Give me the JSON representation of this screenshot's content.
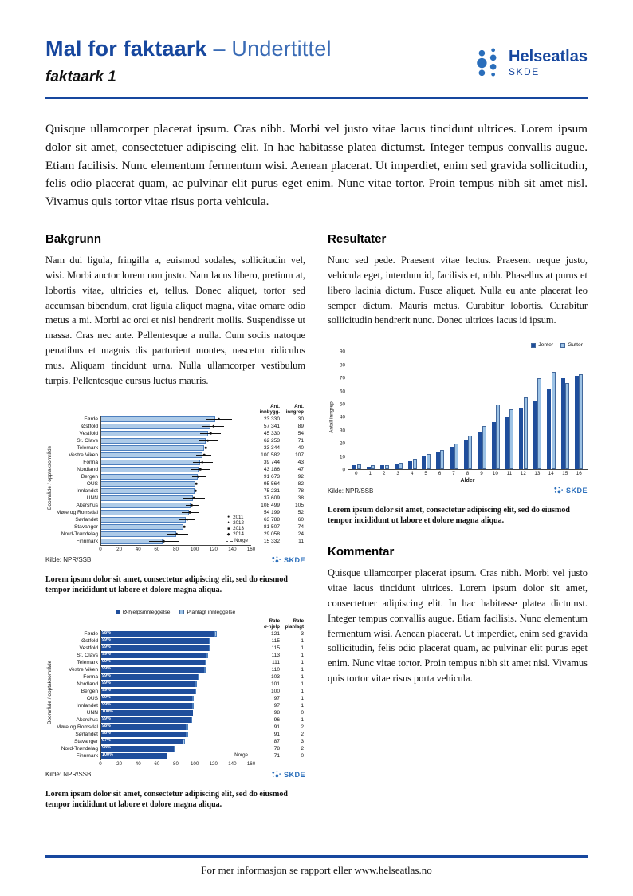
{
  "brand": {
    "primary": "#17479e",
    "bar_light": "#aecbe8",
    "bar_dark": "#1f4e9c",
    "dot_blue": "#2a6ebb",
    "skde_label": "SKDE"
  },
  "header": {
    "title": "Mal for faktaark",
    "title_suffix": "– Undertittel",
    "subtitle": "faktaark 1",
    "logo_name": "Helseatlas",
    "logo_org": "SKDE"
  },
  "intro": "Quisque ullamcorper placerat ipsum. Cras nibh. Morbi vel justo vitae lacus tincidunt ultrices. Lorem ipsum dolor sit amet, consectetuer adipiscing elit. In hac habitasse platea dictumst. Integer tempus convallis augue. Etiam facilisis. Nunc elementum fermentum wisi. Aenean placerat. Ut imperdiet, enim sed gravida sollicitudin, felis odio placerat quam, ac pulvinar elit purus eget enim. Nunc vitae tortor. Proin tempus nibh sit amet nisl. Vivamus quis tortor vitae risus porta vehicula.",
  "sections": {
    "bakgrunn": {
      "heading": "Bakgrunn",
      "body": "Nam dui ligula, fringilla a, euismod sodales, sollicitudin vel, wisi. Morbi auctor lorem non justo. Nam lacus libero, pretium at, lobortis vitae, ultricies et, tellus. Donec aliquet, tortor sed accumsan bibendum, erat ligula aliquet magna, vitae ornare odio metus a mi. Morbi ac orci et nisl hendrerit mollis. Suspendisse ut massa. Cras nec ante. Pellentesque a nulla. Cum sociis natoque penatibus et magnis dis parturient montes, nascetur ridiculus mus. Aliquam tincidunt urna. Nulla ullamcorper vestibulum turpis. Pellentesque cursus luctus mauris."
    },
    "resultater": {
      "heading": "Resultater",
      "body": "Nunc sed pede. Praesent vitae lectus. Praesent neque justo, vehicula eget, interdum id, facilisis et, nibh. Phasellus at purus et libero lacinia dictum. Fusce aliquet. Nulla eu ante placerat leo semper dictum. Mauris metus. Curabitur lobortis. Curabitur sollicitudin hendrerit nunc. Donec ultrices lacus id ipsum."
    },
    "kommentar": {
      "heading": "Kommentar",
      "body": "Quisque ullamcorper placerat ipsum. Cras nibh. Morbi vel justo vitae lacus tincidunt ultrices. Lorem ipsum dolor sit amet, consectetuer adipiscing elit. In hac habitasse platea dictumst. Integer tempus convallis augue. Etiam facilisis. Nunc elementum fermentum wisi. Aenean placerat. Ut imperdiet, enim sed gravida sollicitudin, felis odio placerat quam, ac pulvinar elit purus eget enim. Nunc vitae tortor. Proin tempus nibh sit amet nisl. Vivamus quis tortor vitae risus porta vehicula."
    }
  },
  "captions": {
    "c1": "Lorem ipsum dolor sit amet, consectetur adipiscing elit, sed do eiusmod tempor incididunt ut labore et dolore magna aliqua.",
    "c2": "Lorem ipsum dolor sit amet, consectetur adipiscing elit, sed do eiusmod tempor incididunt ut labore et dolore magna aliqua.",
    "c3": "Lorem ipsum dolor sit amet, consectetur adipiscing elit, sed do eiusmod tempor incididunt ut labore et dolore magna aliqua."
  },
  "chart_data": [
    {
      "type": "bar",
      "orientation": "horizontal",
      "ylabel": "Boområde / opptaksområde",
      "xlim": [
        0,
        160
      ],
      "xticks": [
        0,
        20,
        40,
        60,
        80,
        100,
        120,
        140,
        160
      ],
      "col_headers": [
        "Ant. innbygg.",
        "Ant. inngrep"
      ],
      "legend": [
        {
          "label": "2011",
          "symbol": "●"
        },
        {
          "label": "2012",
          "symbol": "▲"
        },
        {
          "label": "2013",
          "symbol": "■"
        },
        {
          "label": "2014",
          "symbol": "◆"
        }
      ],
      "norge": {
        "label": "Norge",
        "value": 100
      },
      "source": "Kilde: NPR/SSB",
      "rows": [
        {
          "label": "Førde",
          "value": 122,
          "point": 126,
          "lo": 112,
          "hi": 140,
          "innbygg": "23 330",
          "inngrep": "30"
        },
        {
          "label": "Østfold",
          "value": 117,
          "point": 120,
          "lo": 108,
          "hi": 131,
          "innbygg": "57 341",
          "inngrep": "89"
        },
        {
          "label": "Vestfold",
          "value": 114,
          "point": 117,
          "lo": 106,
          "hi": 128,
          "innbygg": "45 330",
          "inngrep": "54"
        },
        {
          "label": "St. Olavs",
          "value": 112,
          "point": 114,
          "lo": 104,
          "hi": 125,
          "innbygg": "62 253",
          "inngrep": "71"
        },
        {
          "label": "Telemark",
          "value": 110,
          "point": 112,
          "lo": 100,
          "hi": 124,
          "innbygg": "33 344",
          "inngrep": "40"
        },
        {
          "label": "Vestre Viken",
          "value": 108,
          "point": 110,
          "lo": 102,
          "hi": 118,
          "innbygg": "100 582",
          "inngrep": "107"
        },
        {
          "label": "Fonna",
          "value": 106,
          "point": 108,
          "lo": 98,
          "hi": 119,
          "innbygg": "39 744",
          "inngrep": "43"
        },
        {
          "label": "Nordland",
          "value": 104,
          "point": 106,
          "lo": 96,
          "hi": 117,
          "innbygg": "43 186",
          "inngrep": "47"
        },
        {
          "label": "Bergen",
          "value": 103,
          "point": 104,
          "lo": 97,
          "hi": 112,
          "innbygg": "91 673",
          "inngrep": "92"
        },
        {
          "label": "OUS",
          "value": 101,
          "point": 102,
          "lo": 95,
          "hi": 110,
          "innbygg": "95 564",
          "inngrep": "82"
        },
        {
          "label": "Innlandet",
          "value": 100,
          "point": 101,
          "lo": 93,
          "hi": 109,
          "innbygg": "75 231",
          "inngrep": "78"
        },
        {
          "label": "UNN",
          "value": 98,
          "point": 99,
          "lo": 88,
          "hi": 111,
          "innbygg": "37 609",
          "inngrep": "38"
        },
        {
          "label": "Akershus",
          "value": 96,
          "point": 97,
          "lo": 91,
          "hi": 104,
          "innbygg": "108 499",
          "inngrep": "105"
        },
        {
          "label": "Møre og Romsdal",
          "value": 94,
          "point": 95,
          "lo": 86,
          "hi": 105,
          "innbygg": "54 199",
          "inngrep": "52"
        },
        {
          "label": "Sørlandet",
          "value": 91,
          "point": 92,
          "lo": 84,
          "hi": 101,
          "innbygg": "63 788",
          "inngrep": "60"
        },
        {
          "label": "Stavanger",
          "value": 88,
          "point": 89,
          "lo": 81,
          "hi": 98,
          "innbygg": "81 507",
          "inngrep": "74"
        },
        {
          "label": "Nord-Trøndelag",
          "value": 80,
          "point": 81,
          "lo": 70,
          "hi": 93,
          "innbygg": "29 058",
          "inngrep": "24"
        },
        {
          "label": "Finnmark",
          "value": 66,
          "point": 67,
          "lo": 52,
          "hi": 84,
          "innbygg": "15 332",
          "inngrep": "11"
        }
      ]
    },
    {
      "type": "bar",
      "orientation": "vertical-grouped",
      "xlabel": "Alder",
      "ylabel": "Antall inngrep",
      "ylim": [
        0,
        90
      ],
      "yticks": [
        0,
        10,
        20,
        30,
        40,
        50,
        60,
        70,
        80,
        90
      ],
      "categories": [
        "0",
        "1",
        "2",
        "3",
        "4",
        "5",
        "6",
        "7",
        "8",
        "9",
        "10",
        "11",
        "12",
        "13",
        "14",
        "15",
        "16"
      ],
      "series": [
        {
          "name": "Jenter",
          "color": "#1f4e9c",
          "values": [
            3,
            2,
            3,
            4,
            6,
            10,
            13,
            17,
            22,
            28,
            36,
            40,
            47,
            52,
            62,
            70,
            72
          ]
        },
        {
          "name": "Gutter",
          "color": "#9dc3e6",
          "values": [
            4,
            3,
            3,
            5,
            8,
            12,
            15,
            20,
            26,
            33,
            50,
            46,
            55,
            70,
            75,
            66,
            73
          ]
        }
      ],
      "source": "Kilde: NPR/SSB"
    },
    {
      "type": "bar",
      "orientation": "horizontal-stacked",
      "ylabel": "Boområde / opptaksområde",
      "xlim": [
        0,
        160
      ],
      "xticks": [
        0,
        20,
        40,
        60,
        80,
        100,
        120,
        140,
        160
      ],
      "col_headers": [
        "Rate ø-hjelp",
        "Rate planlagt"
      ],
      "legend": [
        {
          "label": "Ø-hjelpsinnleggelse",
          "color": "#1f4e9c"
        },
        {
          "label": "Planlagt innleggelse",
          "color": "#9dc3e6"
        }
      ],
      "norge": {
        "label": "Norge",
        "value": 100
      },
      "source": "Kilde: NPR/SSB",
      "rows": [
        {
          "label": "Førde",
          "pct": "98%",
          "ohjelp": 121,
          "planlagt": 3
        },
        {
          "label": "Østfold",
          "pct": "99%",
          "ohjelp": 115,
          "planlagt": 1
        },
        {
          "label": "Vestfold",
          "pct": "99%",
          "ohjelp": 115,
          "planlagt": 1
        },
        {
          "label": "St. Olavs",
          "pct": "99%",
          "ohjelp": 113,
          "planlagt": 1
        },
        {
          "label": "Telemark",
          "pct": "99%",
          "ohjelp": 111,
          "planlagt": 1
        },
        {
          "label": "Vestre Viken",
          "pct": "99%",
          "ohjelp": 110,
          "planlagt": 1
        },
        {
          "label": "Fonna",
          "pct": "99%",
          "ohjelp": 103,
          "planlagt": 1
        },
        {
          "label": "Nordland",
          "pct": "99%",
          "ohjelp": 101,
          "planlagt": 1
        },
        {
          "label": "Bergen",
          "pct": "99%",
          "ohjelp": 100,
          "planlagt": 1
        },
        {
          "label": "OUS",
          "pct": "99%",
          "ohjelp": 97,
          "planlagt": 1
        },
        {
          "label": "Innlandet",
          "pct": "99%",
          "ohjelp": 97,
          "planlagt": 1
        },
        {
          "label": "UNN",
          "pct": "100%",
          "ohjelp": 98,
          "planlagt": 0
        },
        {
          "label": "Akershus",
          "pct": "99%",
          "ohjelp": 96,
          "planlagt": 1
        },
        {
          "label": "Møre og Romsdal",
          "pct": "98%",
          "ohjelp": 91,
          "planlagt": 2
        },
        {
          "label": "Sørlandet",
          "pct": "98%",
          "ohjelp": 91,
          "planlagt": 2
        },
        {
          "label": "Stavanger",
          "pct": "97%",
          "ohjelp": 87,
          "planlagt": 3
        },
        {
          "label": "Nord-Trøndelag",
          "pct": "98%",
          "ohjelp": 78,
          "planlagt": 2
        },
        {
          "label": "Finnmark",
          "pct": "100%",
          "ohjelp": 71,
          "planlagt": 0
        }
      ]
    }
  ],
  "footer": {
    "text": "For mer informasjon se rapport eller www.helseatlas.no"
  }
}
